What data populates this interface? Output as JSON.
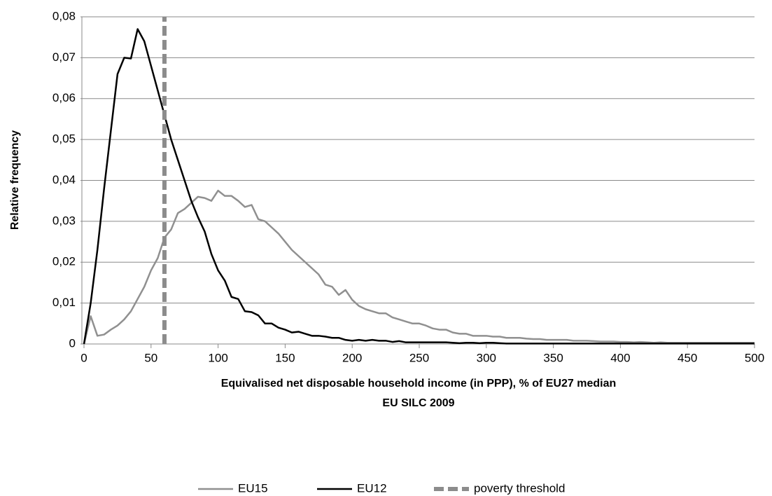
{
  "chart_data": {
    "type": "line",
    "ylabel": "Relative frequency",
    "xlabel": [
      "Equivalised  net disposable  household  income (in PPP), % of EU27 median",
      "EU SILC 2009"
    ],
    "xlim": [
      0,
      500
    ],
    "xticks": [
      0,
      50,
      100,
      150,
      200,
      250,
      300,
      350,
      400,
      450,
      500
    ],
    "ylim": [
      0,
      0.08
    ],
    "yticks": [
      0,
      {
        "value": 0.01,
        "label": "0,01"
      },
      {
        "value": 0.02,
        "label": "0,02"
      },
      {
        "value": 0.03,
        "label": "0,03"
      },
      {
        "value": 0.04,
        "label": "0,04"
      },
      {
        "value": 0.05,
        "label": "0,05"
      },
      {
        "value": 0.06,
        "label": "0,06"
      },
      {
        "value": 0.07,
        "label": "0,07"
      },
      {
        "value": 0.08,
        "label": "0,08"
      }
    ],
    "grid": true,
    "legend": "bottom",
    "x": [
      0,
      5,
      10,
      15,
      20,
      25,
      30,
      35,
      40,
      45,
      50,
      55,
      60,
      65,
      70,
      75,
      80,
      85,
      90,
      95,
      100,
      105,
      110,
      115,
      120,
      125,
      130,
      135,
      140,
      145,
      150,
      155,
      160,
      165,
      170,
      175,
      180,
      185,
      190,
      195,
      200,
      205,
      210,
      215,
      220,
      225,
      230,
      235,
      240,
      245,
      250,
      255,
      260,
      265,
      270,
      275,
      280,
      285,
      290,
      295,
      300,
      305,
      310,
      315,
      320,
      325,
      330,
      335,
      340,
      345,
      350,
      355,
      360,
      365,
      370,
      375,
      380,
      385,
      390,
      395,
      400,
      405,
      410,
      415,
      420,
      425,
      430,
      435,
      440,
      445,
      450,
      455,
      460,
      465,
      470,
      475,
      480,
      485,
      490,
      495,
      500
    ],
    "series": [
      {
        "name": "EU15",
        "color": "#909090",
        "values": [
          0,
          0.0068,
          0.002,
          0.0023,
          0.0035,
          0.0045,
          0.006,
          0.008,
          0.011,
          0.014,
          0.018,
          0.021,
          0.026,
          0.028,
          0.032,
          0.033,
          0.0345,
          0.036,
          0.0357,
          0.035,
          0.0375,
          0.0362,
          0.0362,
          0.035,
          0.0335,
          0.034,
          0.0305,
          0.03,
          0.0285,
          0.027,
          0.025,
          0.023,
          0.0215,
          0.02,
          0.0185,
          0.017,
          0.0145,
          0.014,
          0.012,
          0.0132,
          0.0108,
          0.0093,
          0.0085,
          0.008,
          0.0075,
          0.0075,
          0.0065,
          0.006,
          0.0055,
          0.005,
          0.005,
          0.0045,
          0.0038,
          0.0035,
          0.0035,
          0.0028,
          0.0025,
          0.0025,
          0.002,
          0.002,
          0.002,
          0.0018,
          0.0018,
          0.0015,
          0.0015,
          0.0015,
          0.0013,
          0.0012,
          0.0012,
          0.001,
          0.001,
          0.001,
          0.001,
          0.0008,
          0.0008,
          0.0008,
          0.0007,
          0.0006,
          0.0006,
          0.0006,
          0.0005,
          0.0005,
          0.0004,
          0.0005,
          0.0004,
          0.0003,
          0.0004,
          0.0003,
          0.0003,
          0.0003,
          0.0003,
          0.0003,
          0.0003,
          0.0003,
          0.0003,
          0.0003,
          0.0003,
          0.0003,
          0.0003,
          0.0003,
          0.0003
        ]
      },
      {
        "name": "EU12",
        "color": "#000000",
        "values": [
          0,
          0.01,
          0.023,
          0.038,
          0.052,
          0.066,
          0.07,
          0.0698,
          0.077,
          0.074,
          0.068,
          0.062,
          0.056,
          0.05,
          0.045,
          0.04,
          0.035,
          0.031,
          0.0275,
          0.022,
          0.018,
          0.0155,
          0.0115,
          0.011,
          0.008,
          0.0078,
          0.007,
          0.005,
          0.005,
          0.004,
          0.0035,
          0.0028,
          0.003,
          0.0025,
          0.002,
          0.002,
          0.0018,
          0.0015,
          0.0015,
          0.001,
          0.0008,
          0.001,
          0.0008,
          0.001,
          0.0008,
          0.0008,
          0.0005,
          0.0007,
          0.0004,
          0.0004,
          0.0004,
          0.0004,
          0.0004,
          0.0004,
          0.0004,
          0.0003,
          0.0002,
          0.0003,
          0.0003,
          0.0002,
          0.0003,
          0.0003,
          0.0002,
          0.0001,
          0.0001,
          0.0001,
          0.0001,
          0.0001,
          0.0001,
          0.0001,
          0.0001,
          0.0001,
          0.0001,
          0.0001,
          0.0001,
          0.0001,
          0.0001,
          0.0001,
          0.0001,
          0.0001,
          0.0001,
          0.0001,
          0.0001,
          0.0001,
          0.0001,
          0.0001,
          0.0001,
          0.0001,
          0.0001,
          0.0001,
          0.0001,
          0.0001,
          0.0001,
          0.0001,
          0.0001,
          0.0001,
          0.0001,
          0.0001,
          0.0001,
          0.0001,
          0.0001
        ]
      },
      {
        "name": "poverty threshold",
        "color": "#8c8c8c",
        "dashed": true,
        "x": [
          60,
          60
        ],
        "values": [
          0,
          0.08
        ]
      }
    ]
  }
}
